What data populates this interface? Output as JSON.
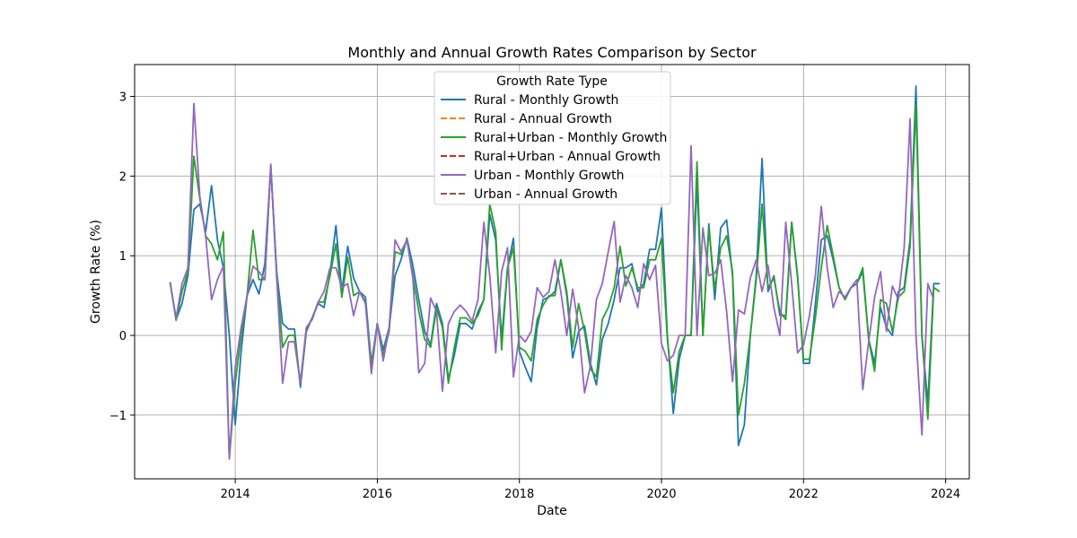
{
  "chart_data": {
    "type": "line",
    "title": "Monthly and Annual Growth Rates Comparison by Sector",
    "xlabel": "Date",
    "ylabel": "Growth Rate (%)",
    "xlim": [
      "2012-08-01",
      "2024-05-01"
    ],
    "ylim": [
      -1.8,
      3.4
    ],
    "x_ticks": [
      "2014",
      "2016",
      "2018",
      "2020",
      "2022",
      "2024"
    ],
    "y_ticks": [
      -1,
      0,
      1,
      2,
      3
    ],
    "y_tick_labels": [
      "−1",
      "0",
      "1",
      "2",
      "3"
    ],
    "grid": true,
    "legend_title": "Growth Rate Type",
    "legend_position": "upper-center",
    "x_start": "2013-02",
    "series": [
      {
        "name": "Rural - Monthly Growth",
        "color": "#1f77b4",
        "dash": "solid",
        "values": [
          0.67,
          0.2,
          0.4,
          0.75,
          1.58,
          1.65,
          1.3,
          1.88,
          1.2,
          0.85,
          0.0,
          -1.12,
          -0.2,
          0.5,
          0.7,
          0.52,
          0.9,
          2.12,
          0.8,
          0.15,
          0.08,
          0.08,
          -0.65,
          0.05,
          0.22,
          0.4,
          0.35,
          0.78,
          1.38,
          0.55,
          1.12,
          0.72,
          0.55,
          0.48,
          -0.35,
          0.15,
          -0.18,
          0.1,
          0.75,
          0.95,
          1.22,
          0.88,
          0.45,
          0.05,
          -0.12,
          0.4,
          0.15,
          -0.55,
          -0.25,
          0.15,
          0.15,
          0.08,
          0.3,
          0.45,
          1.52,
          1.2,
          -0.05,
          0.85,
          1.22,
          -0.2,
          -0.4,
          -0.58,
          0.1,
          0.45,
          0.48,
          0.55,
          0.95,
          0.5,
          -0.28,
          0.05,
          0.12,
          -0.35,
          -0.62,
          -0.05,
          0.15,
          0.45,
          0.85,
          0.85,
          0.9,
          0.55,
          0.65,
          1.08,
          1.08,
          1.6,
          0.0,
          -0.98,
          -0.3,
          0.0,
          0.0,
          1.95,
          0.0,
          1.4,
          0.45,
          1.35,
          1.45,
          0.75,
          -1.38,
          -1.12,
          0.0,
          0.75,
          2.22,
          0.55,
          0.75,
          0.25,
          0.25,
          1.42,
          0.75,
          -0.35,
          -0.35,
          0.4,
          1.2,
          1.25,
          0.95,
          0.6,
          0.45,
          0.6,
          0.65,
          0.8,
          -0.05,
          -0.35,
          0.35,
          0.1,
          0.0,
          0.55,
          0.6,
          1.2,
          3.13,
          0.0,
          -0.85,
          0.65,
          0.65
        ]
      },
      {
        "name": "Rural - Annual Growth",
        "color": "#ff7f0e",
        "dash": "dashed",
        "values": []
      },
      {
        "name": "Rural+Urban - Monthly Growth",
        "color": "#2ca02c",
        "dash": "solid",
        "values": [
          0.66,
          0.19,
          0.55,
          0.8,
          2.25,
          1.72,
          1.25,
          1.15,
          0.95,
          1.3,
          -1.55,
          -0.6,
          0.0,
          0.5,
          1.32,
          0.7,
          0.7,
          2.12,
          0.75,
          -0.15,
          0.0,
          0.0,
          -0.6,
          0.08,
          0.22,
          0.42,
          0.42,
          0.75,
          1.15,
          0.48,
          0.98,
          0.5,
          0.55,
          0.42,
          -0.38,
          0.15,
          -0.25,
          0.05,
          1.05,
          1.02,
          1.2,
          0.75,
          0.3,
          -0.05,
          -0.15,
          0.35,
          0.1,
          -0.6,
          -0.15,
          0.22,
          0.22,
          0.15,
          0.25,
          0.45,
          1.65,
          1.3,
          -0.18,
          0.85,
          1.1,
          -0.15,
          -0.2,
          -0.32,
          0.2,
          0.38,
          0.5,
          0.5,
          0.95,
          0.55,
          -0.15,
          0.4,
          0.05,
          -0.42,
          -0.52,
          0.2,
          0.35,
          0.6,
          1.12,
          0.62,
          0.85,
          0.6,
          0.6,
          0.95,
          0.95,
          1.22,
          -0.05,
          -0.72,
          -0.2,
          0.0,
          0.0,
          2.18,
          0.0,
          1.35,
          0.58,
          1.1,
          1.25,
          0.8,
          -1.0,
          -0.6,
          0.0,
          0.7,
          1.65,
          0.6,
          0.72,
          0.3,
          0.2,
          1.42,
          0.72,
          -0.3,
          -0.3,
          0.22,
          0.85,
          1.38,
          1.0,
          0.6,
          0.45,
          0.6,
          0.65,
          0.85,
          -0.05,
          -0.45,
          0.45,
          0.4,
          0.05,
          0.48,
          0.55,
          1.12,
          2.9,
          0.0,
          -1.05,
          0.6,
          0.55
        ]
      },
      {
        "name": "Rural+Urban - Annual Growth",
        "color": "#d62728",
        "dash": "dashed",
        "values": []
      },
      {
        "name": "Urban - Monthly Growth",
        "color": "#9467bd",
        "dash": "solid",
        "values": [
          0.65,
          0.22,
          0.65,
          0.85,
          2.91,
          1.75,
          1.25,
          0.45,
          0.7,
          0.87,
          -1.55,
          -0.4,
          0.1,
          0.5,
          0.87,
          0.8,
          0.7,
          2.15,
          0.72,
          -0.6,
          -0.08,
          -0.08,
          -0.6,
          0.1,
          0.2,
          0.42,
          0.55,
          0.85,
          0.85,
          0.6,
          0.65,
          0.25,
          0.55,
          0.4,
          -0.48,
          0.15,
          -0.32,
          0.1,
          1.2,
          1.05,
          1.2,
          0.72,
          -0.47,
          -0.35,
          0.47,
          0.3,
          -0.7,
          0.15,
          0.3,
          0.38,
          0.3,
          0.18,
          0.45,
          1.42,
          0.75,
          -0.22,
          0.8,
          1.1,
          -0.52,
          0.0,
          -0.08,
          0.05,
          0.6,
          0.48,
          0.55,
          0.95,
          0.55,
          0.0,
          0.58,
          0.1,
          -0.72,
          -0.38,
          0.45,
          0.65,
          1.05,
          1.43,
          0.42,
          0.75,
          0.6,
          0.35,
          0.9,
          0.7,
          0.88,
          -0.1,
          -0.32,
          -0.25,
          0.0,
          0.0,
          2.38,
          0.0,
          1.35,
          0.75,
          0.78,
          0.95,
          0.3,
          -0.58,
          0.32,
          0.27,
          0.72,
          0.95,
          0.55,
          0.88,
          0.35,
          0.0,
          1.42,
          0.65,
          -0.22,
          -0.12,
          0.25,
          0.75,
          1.62,
          0.85,
          0.35,
          0.55,
          0.48,
          0.6,
          0.7,
          -0.68,
          -0.08,
          0.48,
          0.8,
          0.05,
          0.62,
          0.45,
          1.1,
          2.72,
          0.0,
          -1.25,
          0.65,
          0.45
        ]
      },
      {
        "name": "Urban - Annual Growth",
        "color": "#8c564b",
        "dash": "dashed",
        "values": []
      }
    ]
  }
}
